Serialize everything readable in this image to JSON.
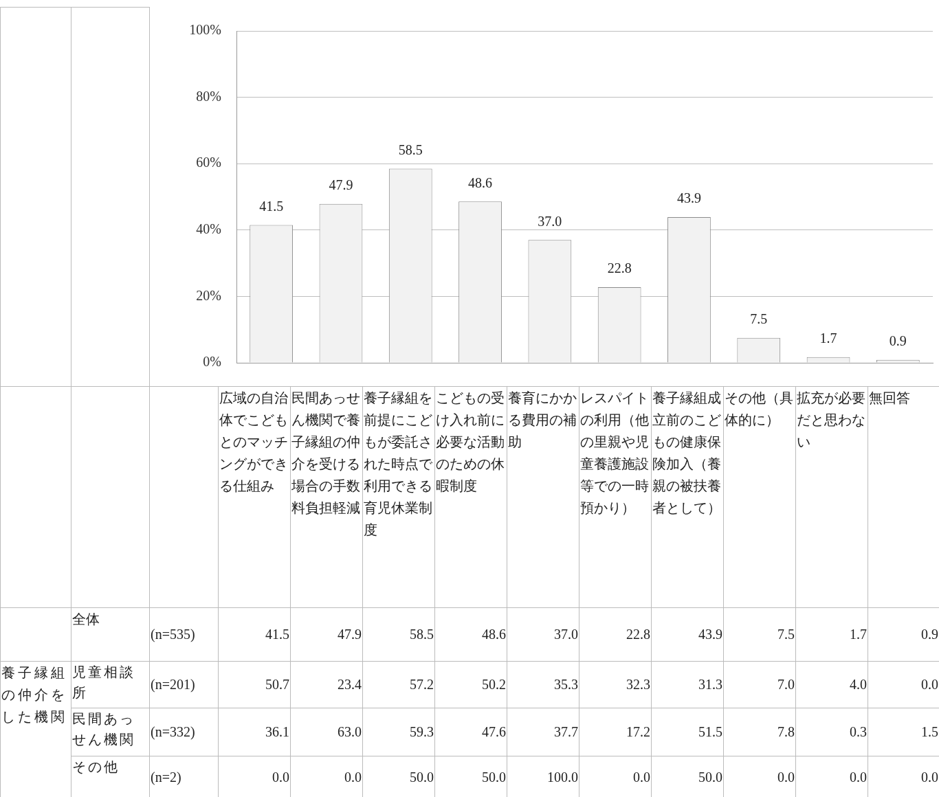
{
  "chart_data": [
    {
      "type": "bar",
      "categories": [
        null,
        null,
        null,
        null,
        null,
        null,
        null,
        null,
        null,
        null
      ],
      "values": [
        41.5,
        47.9,
        58.5,
        48.6,
        37.0,
        22.8,
        43.9,
        7.5,
        1.7,
        0.9
      ],
      "value_labels": [
        "41.5",
        "47.9",
        "58.5",
        "48.6",
        "37.0",
        "22.8",
        "43.9",
        "7.5",
        "1.7",
        "0.9"
      ],
      "color": "#f2f2f2",
      "ylim": [
        0,
        100
      ],
      "yticks": [
        {
          "value": 0,
          "label": "0%"
        },
        {
          "value": 20,
          "label": "20%"
        },
        {
          "value": 40,
          "label": "40%"
        },
        {
          "value": 60,
          "label": "60%"
        },
        {
          "value": 80,
          "label": "80%"
        },
        {
          "value": 100,
          "label": "100%"
        }
      ],
      "grid": "y"
    },
    {
      "type": "heatmap",
      "categories": [
        "広域の自治体でこどもとのマッチングができる仕組み",
        "民間あっせん機関で養子縁組の仲介を受ける場合の手数料負担軽減",
        "養子縁組を前提にこどもが委託された時点で利用できる育児休業制度",
        "こどもの受け入れ前に必要な活動のための休暇制度",
        "養育にかかる費用の補助",
        "レスパイトの利用（他の里親や児童養護施設等での一時預かり）",
        "養子縁組成立前のこどもの健康保険加入（養親の被扶養者として）",
        "その他（具体的に）",
        "拡充が必要だと思わない",
        "無回答"
      ],
      "y_categories": [
        "全体",
        "児童相談所",
        "民間あっせん機関",
        "その他"
      ],
      "y2_categories": [
        "(n=535)",
        "(n=201)",
        "(n=332)",
        "(n=2)"
      ],
      "cells": [
        [
          41.5,
          47.9,
          58.5,
          48.6,
          37.0,
          22.8,
          43.9,
          7.5,
          1.7,
          0.9
        ],
        [
          50.7,
          23.4,
          57.2,
          50.2,
          35.3,
          32.3,
          31.3,
          7.0,
          4.0,
          0.0
        ],
        [
          36.1,
          63.0,
          59.3,
          47.6,
          37.7,
          17.2,
          51.5,
          7.8,
          0.3,
          1.5
        ],
        [
          0.0,
          0.0,
          50.0,
          50.0,
          100.0,
          0.0,
          50.0,
          0.0,
          0.0,
          0.0
        ]
      ],
      "cell_labels": [
        [
          "41.5",
          "47.9",
          "58.5",
          "48.6",
          "37.0",
          "22.8",
          "43.9",
          "7.5",
          "1.7",
          "0.9"
        ],
        [
          "50.7",
          "23.4",
          "57.2",
          "50.2",
          "35.3",
          "32.3",
          "31.3",
          "7.0",
          "4.0",
          "0.0"
        ],
        [
          "36.1",
          "63.0",
          "59.3",
          "47.6",
          "37.7",
          "17.2",
          "51.5",
          "7.8",
          "0.3",
          "1.5"
        ],
        [
          "0.0",
          "0.0",
          "50.0",
          "50.0",
          "100.0",
          "0.0",
          "50.0",
          "0.0",
          "0.0",
          "0.0"
        ]
      ],
      "data_labels": true,
      "annotations": [
        "養子縁組の仲介をした機関"
      ]
    }
  ]
}
